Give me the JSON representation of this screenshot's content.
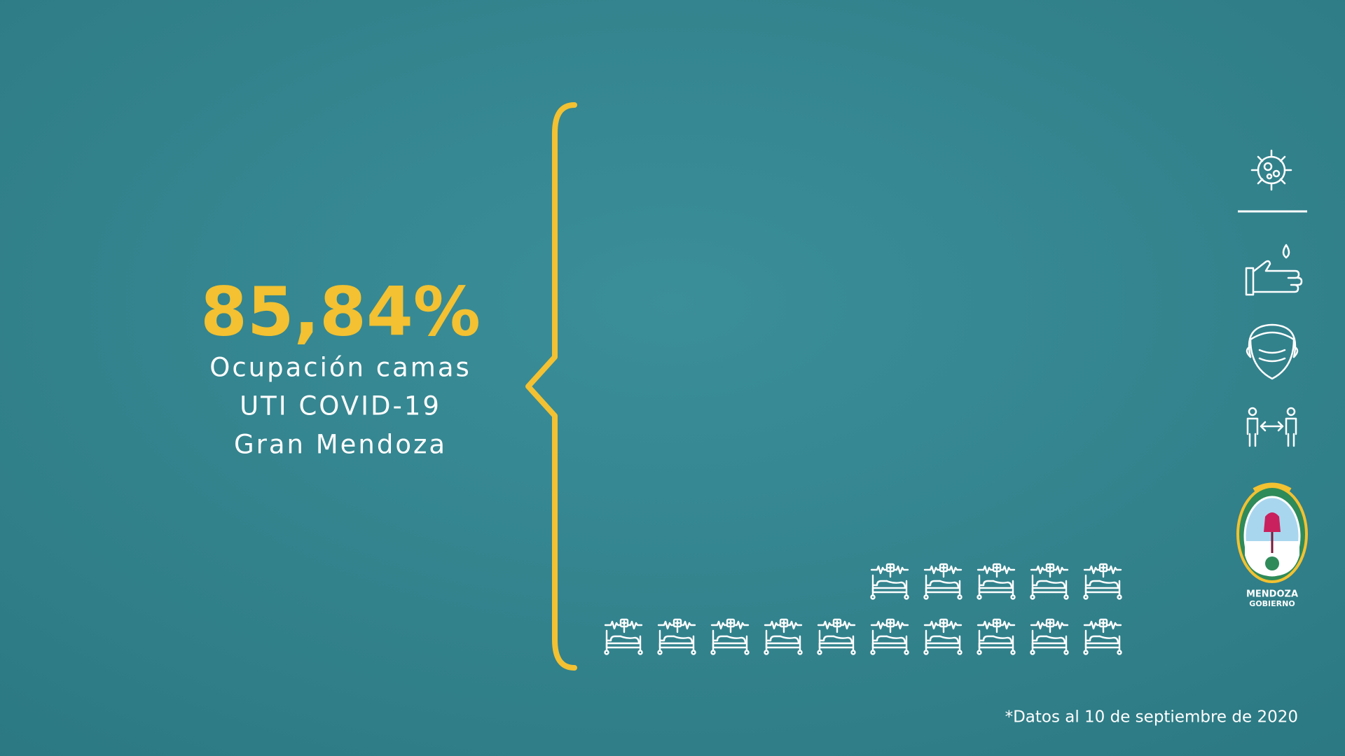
{
  "chart_data": {
    "type": "waffle",
    "values": [
      85.84
    ],
    "value_labels": [
      "85,84%"
    ],
    "subtitle_lines": [
      "Ocupación camas",
      "UTI COVID-19",
      "Gran Mendoza"
    ],
    "color": "#f3c131",
    "empty_color": "#ffffff",
    "note": "*Datos al 10 de septiembre de 2020"
  },
  "logo": {
    "lines": [
      "MENDOZA",
      "GOBIERNO"
    ]
  }
}
